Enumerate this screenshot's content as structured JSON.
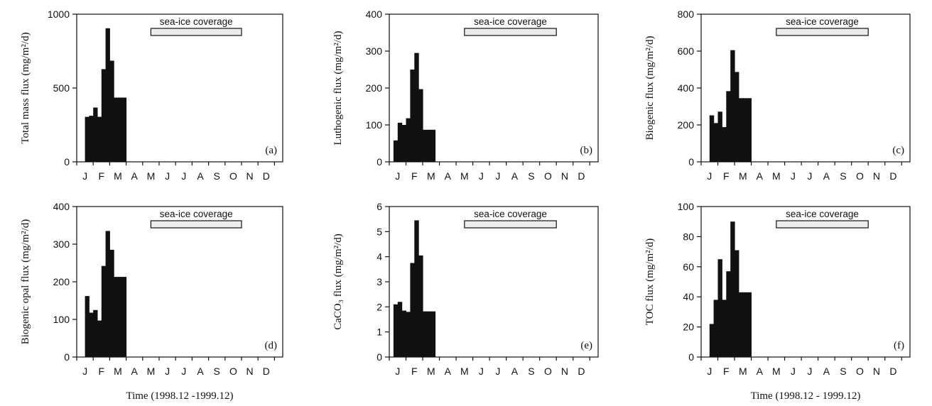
{
  "chart_data": [
    {
      "type": "bar",
      "panel_label": "(a)",
      "ylabel": "Total mass flux (mg/m²/d)",
      "ylim": [
        0,
        1000
      ],
      "yticks": [
        0,
        500,
        1000
      ],
      "months": [
        "J",
        "F",
        "M",
        "A",
        "M",
        "J",
        "J",
        "A",
        "S",
        "O",
        "N",
        "D"
      ],
      "annotation": "sea-ice coverage",
      "sea_ice_months": [
        5,
        10.5
      ],
      "xlabel": "",
      "bars": [
        [
          1,
          1.25,
          305
        ],
        [
          1.25,
          1.5,
          312
        ],
        [
          1.5,
          1.75,
          368
        ],
        [
          1.75,
          2,
          305
        ],
        [
          2,
          2.25,
          628
        ],
        [
          2.25,
          2.5,
          905
        ],
        [
          2.5,
          2.75,
          685
        ],
        [
          2.75,
          3.5,
          435
        ]
      ]
    },
    {
      "type": "bar",
      "panel_label": "(b)",
      "ylabel": "Luthogenic flux (mg/m²/d)",
      "ylim": [
        0,
        400
      ],
      "yticks": [
        0,
        100,
        200,
        300,
        400
      ],
      "months": [
        "J",
        "F",
        "M",
        "A",
        "M",
        "J",
        "J",
        "A",
        "S",
        "O",
        "N",
        "D"
      ],
      "annotation": "sea-ice coverage",
      "sea_ice_months": [
        5,
        10.5
      ],
      "xlabel": "",
      "bars": [
        [
          0.75,
          1,
          58
        ],
        [
          1,
          1.25,
          106
        ],
        [
          1.25,
          1.5,
          100
        ],
        [
          1.5,
          1.75,
          118
        ],
        [
          1.75,
          2,
          250
        ],
        [
          2,
          2.25,
          295
        ],
        [
          2.25,
          2.5,
          197
        ],
        [
          2.5,
          3.25,
          87
        ]
      ]
    },
    {
      "type": "bar",
      "panel_label": "(c)",
      "ylabel": "Biogenic flux (mg/m²/d)",
      "ylim": [
        0,
        800
      ],
      "yticks": [
        0,
        200,
        400,
        600,
        800
      ],
      "months": [
        "J",
        "F",
        "M",
        "A",
        "M",
        "J",
        "J",
        "A",
        "S",
        "O",
        "N",
        "D"
      ],
      "annotation": "sea-ice coverage",
      "sea_ice_months": [
        5,
        10.5
      ],
      "xlabel": "",
      "bars": [
        [
          1,
          1.25,
          252
        ],
        [
          1.25,
          1.5,
          210
        ],
        [
          1.5,
          1.75,
          272
        ],
        [
          1.75,
          2,
          188
        ],
        [
          2,
          2.25,
          383
        ],
        [
          2.25,
          2.5,
          605
        ],
        [
          2.5,
          2.75,
          487
        ],
        [
          2.75,
          3.5,
          345
        ]
      ]
    },
    {
      "type": "bar",
      "panel_label": "(d)",
      "ylabel": "Biogenic opal flux (mg/m²/d)",
      "ylim": [
        0,
        400
      ],
      "yticks": [
        0,
        100,
        200,
        300,
        400
      ],
      "months": [
        "J",
        "F",
        "M",
        "A",
        "M",
        "J",
        "J",
        "A",
        "S",
        "O",
        "N",
        "D"
      ],
      "annotation": "sea-ice coverage",
      "sea_ice_months": [
        5,
        10.5
      ],
      "xlabel": "Time (1998.12 -1999.12)",
      "bars": [
        [
          1,
          1.25,
          162
        ],
        [
          1.25,
          1.5,
          118
        ],
        [
          1.5,
          1.75,
          125
        ],
        [
          1.75,
          2,
          97
        ],
        [
          2,
          2.25,
          242
        ],
        [
          2.25,
          2.5,
          335
        ],
        [
          2.5,
          2.75,
          285
        ],
        [
          2.75,
          3.5,
          213
        ]
      ]
    },
    {
      "type": "bar",
      "panel_label": "(e)",
      "ylabel": "CaCO₃ flux (mg/m²/d)",
      "ylim": [
        0,
        6
      ],
      "yticks": [
        0,
        1,
        2,
        3,
        4,
        5,
        6
      ],
      "months": [
        "J",
        "F",
        "M",
        "A",
        "M",
        "J",
        "J",
        "A",
        "S",
        "O",
        "N",
        "D"
      ],
      "annotation": "sea-ice coverage",
      "sea_ice_months": [
        5,
        10.5
      ],
      "xlabel": "",
      "bars": [
        [
          0.75,
          1,
          2.1
        ],
        [
          1,
          1.25,
          2.2
        ],
        [
          1.25,
          1.5,
          1.85
        ],
        [
          1.5,
          1.75,
          1.8
        ],
        [
          1.75,
          2,
          3.75
        ],
        [
          2,
          2.25,
          5.45
        ],
        [
          2.25,
          2.5,
          4.05
        ],
        [
          2.5,
          3.25,
          1.82
        ]
      ]
    },
    {
      "type": "bar",
      "panel_label": "(f)",
      "ylabel": "TOC flux (mg/m²/d)",
      "ylim": [
        0,
        100
      ],
      "yticks": [
        0,
        20,
        40,
        60,
        80,
        100
      ],
      "months": [
        "J",
        "F",
        "M",
        "A",
        "M",
        "J",
        "J",
        "A",
        "S",
        "O",
        "N",
        "D"
      ],
      "annotation": "sea-ice coverage",
      "sea_ice_months": [
        5,
        10.5
      ],
      "xlabel": "Time (1998.12 - 1999.12)",
      "bars": [
        [
          1,
          1.25,
          22
        ],
        [
          1.25,
          1.5,
          38
        ],
        [
          1.5,
          1.75,
          65
        ],
        [
          1.75,
          2,
          38
        ],
        [
          2,
          2.25,
          57
        ],
        [
          2.25,
          2.5,
          90
        ],
        [
          2.5,
          2.75,
          71
        ],
        [
          2.75,
          3.5,
          43
        ]
      ]
    }
  ]
}
